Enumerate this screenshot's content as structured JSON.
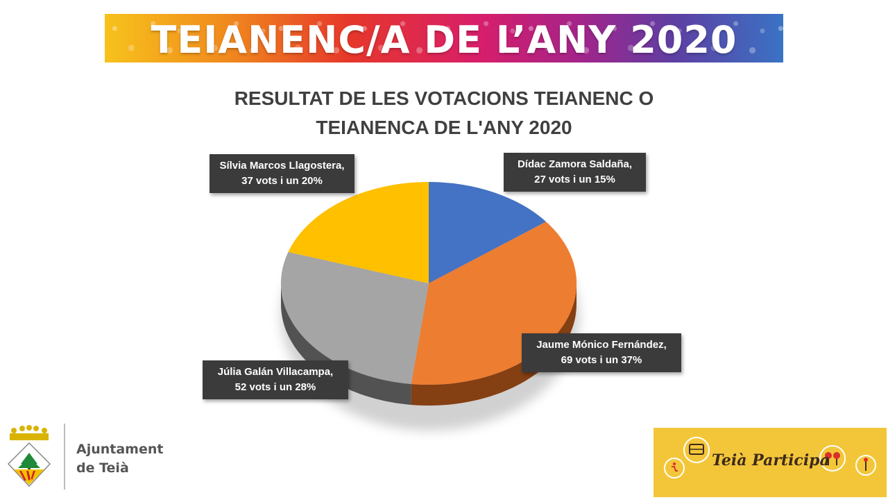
{
  "banner": {
    "title": "TEIANENC/A DE L’ANY 2020"
  },
  "chart_data": {
    "type": "pie",
    "title_lines": [
      "RESULTAT DE LES VOTACIONS TEIANENC O",
      "TEIANENCA DE L'ANY 2020"
    ],
    "categories": [
      "Dídac Zamora Saldaña",
      "Jaume Mónico Fernández",
      "Júlia Galán Villacampa",
      "Sílvia Marcos Llagostera"
    ],
    "values": [
      27,
      69,
      52,
      37
    ],
    "percent": [
      15,
      37,
      28,
      20
    ],
    "colors": [
      "#4472c4",
      "#ed7d31",
      "#a5a5a5",
      "#ffc000"
    ],
    "side_colors": [
      "#2f528f",
      "#843f13",
      "#525252",
      "#b38700"
    ],
    "labels": [
      {
        "line1": "Dídac Zamora Saldaña,",
        "line2": "27 vots  i un 15%"
      },
      {
        "line1": "Jaume Mónico Fernández,",
        "line2": "69 vots i un 37%"
      },
      {
        "line1": "Júlia Galán Villacampa,",
        "line2": "52 vots i un  28%"
      },
      {
        "line1": "Sílvia Marcos Llagostera,",
        "line2": "37 vots i un 20%"
      }
    ]
  },
  "footer": {
    "ajuntament_line1": "Ajuntament",
    "ajuntament_line2": "de Teià",
    "participa_label": "Teià Participa"
  }
}
